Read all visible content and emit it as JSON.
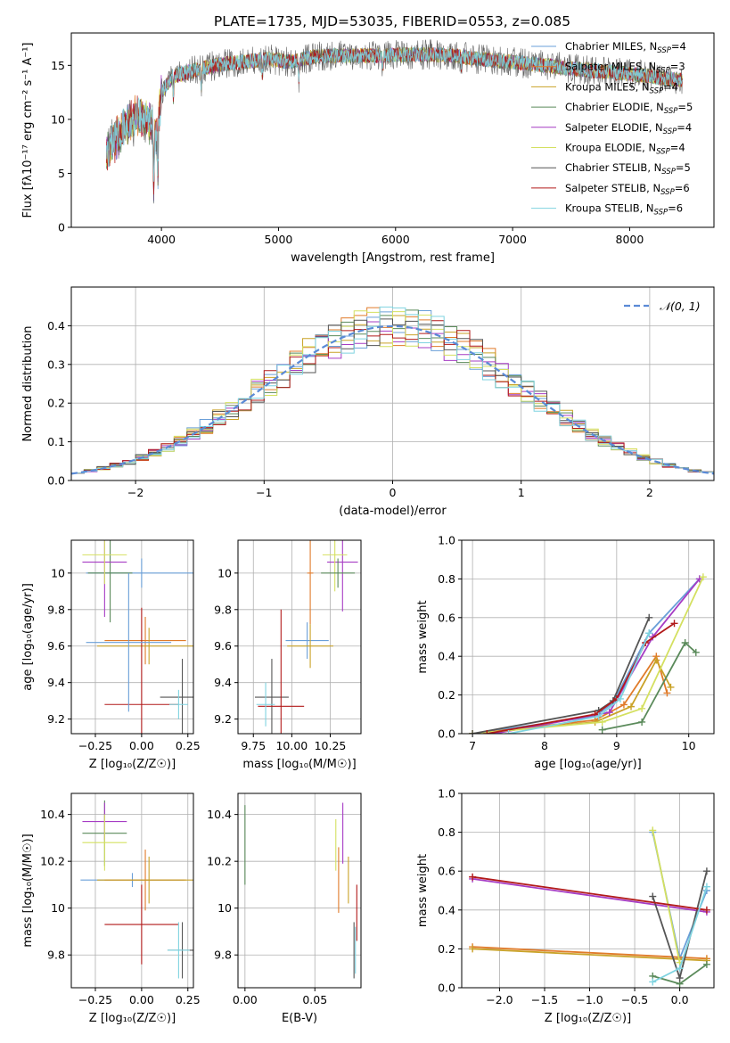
{
  "figure_title": "PLATE=1735, MJD=53035, FIBERID=0553, z=0.085",
  "colors": [
    "#6a9fd8",
    "#e07b2a",
    "#c9a227",
    "#5a8a5a",
    "#a63cc4",
    "#d4e060",
    "#555555",
    "#b21a1a",
    "#7fd3e0"
  ],
  "chart_data": [
    {
      "id": "spectrum",
      "type": "line",
      "title": "PLATE=1735, MJD=53035, FIBERID=0553, z=0.085",
      "xlabel": "wavelength [Angstrom, rest frame]",
      "ylabel": "Flux [fλ10⁻¹⁷ erg cm⁻² s⁻¹ A⁻¹]",
      "xlim": [
        3230,
        8720
      ],
      "ylim": [
        0,
        18
      ],
      "xticks": [
        4000,
        5000,
        6000,
        7000,
        8000
      ],
      "yticks": [
        0,
        5,
        10,
        15
      ],
      "grid": false,
      "legend_position": "upper right",
      "x_knots": [
        3530,
        3600,
        3700,
        3800,
        3900,
        3960,
        4000,
        4100,
        4300,
        4500,
        4700,
        4900,
        5100,
        5300,
        5500,
        5700,
        5900,
        6100,
        6300,
        6500,
        6700,
        6900,
        7100,
        7300,
        7500,
        7700,
        7900,
        8100,
        8300,
        8450
      ],
      "y_knots": [
        7.0,
        8.0,
        9.5,
        10.5,
        9.5,
        8.5,
        12.5,
        14.0,
        14.6,
        15.1,
        15.3,
        15.6,
        15.3,
        15.8,
        15.9,
        15.9,
        15.9,
        16.0,
        16.0,
        15.9,
        15.6,
        15.4,
        15.2,
        15.0,
        14.7,
        14.5,
        14.3,
        14.1,
        13.8,
        13.6
      ],
      "series": [
        {
          "name": "Chabrier MILES, N_SSP=4"
        },
        {
          "name": "Salpeter MILES, N_SSP=3"
        },
        {
          "name": "Kroupa MILES, N_SSP=4"
        },
        {
          "name": "Chabrier ELODIE, N_SSP=5"
        },
        {
          "name": "Salpeter ELODIE, N_SSP=4"
        },
        {
          "name": "Kroupa ELODIE, N_SSP=4"
        },
        {
          "name": "Chabrier STELIB, N_SSP=5"
        },
        {
          "name": "Salpeter STELIB, N_SSP=6"
        },
        {
          "name": "Kroupa STELIB, N_SSP=6"
        }
      ],
      "legend_labels": [
        [
          "Chabrier MILES, N",
          "SSP",
          "=4"
        ],
        [
          "Salpeter MILES, N",
          "SSP",
          "=3"
        ],
        [
          "Kroupa MILES, N",
          "SSP",
          "=4"
        ],
        [
          "Chabrier ELODIE, N",
          "SSP",
          "=5"
        ],
        [
          "Salpeter ELODIE, N",
          "SSP",
          "=4"
        ],
        [
          "Kroupa ELODIE, N",
          "SSP",
          "=4"
        ],
        [
          "Chabrier STELIB, N",
          "SSP",
          "=5"
        ],
        [
          "Salpeter STELIB, N",
          "SSP",
          "=6"
        ],
        [
          "Kroupa STELIB, N",
          "SSP",
          "=6"
        ]
      ]
    },
    {
      "id": "residuals",
      "type": "line",
      "xlabel": "(data-model)/error",
      "ylabel": "Normed distribution",
      "xlim": [
        -2.5,
        2.5
      ],
      "ylim": [
        0,
        0.5
      ],
      "xticks": [
        -2,
        -1,
        0,
        1,
        2
      ],
      "xtick_labels": [
        "−2",
        "−1",
        "0",
        "1",
        "2"
      ],
      "yticks": [
        0.0,
        0.1,
        0.2,
        0.3,
        0.4
      ],
      "grid": true,
      "bin_width": 0.1,
      "bin_start": -2.5,
      "reference_curve": {
        "name": "𝒩(0, 1)",
        "mean": 0,
        "sigma": 1,
        "style": "dashed"
      },
      "legend_position": "upper right"
    },
    {
      "id": "age_vs_Z",
      "type": "scatter",
      "xlabel": "Z [log₁₀(Z/Z☉)]",
      "ylabel": "age  [log₁₀(age/yr)]",
      "xlim": [
        -0.38,
        0.28
      ],
      "ylim": [
        9.12,
        10.18
      ],
      "xticks": [
        -0.25,
        0.0,
        0.25
      ],
      "xtick_labels": [
        "−0.25",
        "0.00",
        "0.25"
      ],
      "yticks": [
        9.2,
        9.4,
        9.6,
        9.8,
        10.0
      ],
      "grid": true,
      "points": [
        {
          "x": 0.0,
          "y": 10.0,
          "xerr": 0.3,
          "yerr": 0.08,
          "c": 0
        },
        {
          "x": 0.02,
          "y": 9.63,
          "xerr": 0.22,
          "yerr": 0.13,
          "c": 1
        },
        {
          "x": 0.04,
          "y": 9.6,
          "xerr": 0.28,
          "yerr": 0.1,
          "c": 2
        },
        {
          "x": -0.17,
          "y": 10.0,
          "xerr": 0.12,
          "yerr": 0.27,
          "c": 3
        },
        {
          "x": -0.2,
          "y": 10.06,
          "xerr": 0.12,
          "yerr": 0.3,
          "c": 4
        },
        {
          "x": -0.2,
          "y": 10.1,
          "xerr": 0.12,
          "yerr": 0.16,
          "c": 5
        },
        {
          "x": 0.22,
          "y": 9.32,
          "xerr": 0.12,
          "yerr": 0.21,
          "c": 6
        },
        {
          "x": 0.0,
          "y": 9.28,
          "xerr": 0.2,
          "yerr": 0.53,
          "c": 7
        },
        {
          "x": 0.2,
          "y": 9.28,
          "xerr": 0.05,
          "yerr": 0.08,
          "c": 8
        },
        {
          "x": -0.07,
          "y": 9.62,
          "xerr": 0.23,
          "yerr": 0.38,
          "c": 0
        }
      ]
    },
    {
      "id": "age_vs_mass",
      "type": "scatter",
      "xlabel": "mass [log₁₀(M/M☉)]",
      "xlim": [
        9.65,
        10.45
      ],
      "ylim": [
        9.12,
        10.18
      ],
      "xticks": [
        9.75,
        10.0,
        10.25
      ],
      "xtick_labels": [
        "9.75",
        "10.00",
        "10.25"
      ],
      "yticks": [
        9.2,
        9.4,
        9.6,
        9.8,
        10.0
      ],
      "grid": true,
      "points": [
        {
          "x": 10.12,
          "y": 10.0,
          "xerr": 0.02,
          "yerr": 0.28,
          "c": 1
        },
        {
          "x": 10.33,
          "y": 10.06,
          "xerr": 0.1,
          "yerr": 0.27,
          "c": 4
        },
        {
          "x": 10.28,
          "y": 10.1,
          "xerr": 0.08,
          "yerr": 0.2,
          "c": 5
        },
        {
          "x": 10.3,
          "y": 10.0,
          "xerr": 0.11,
          "yerr": 0.08,
          "c": 3
        },
        {
          "x": 10.1,
          "y": 9.63,
          "xerr": 0.14,
          "yerr": 0.1,
          "c": 0
        },
        {
          "x": 10.12,
          "y": 9.6,
          "xerr": 0.15,
          "yerr": 0.12,
          "c": 2
        },
        {
          "x": 9.87,
          "y": 9.32,
          "xerr": 0.11,
          "yerr": 0.21,
          "c": 6
        },
        {
          "x": 9.93,
          "y": 9.27,
          "xerr": 0.15,
          "yerr": 0.53,
          "c": 7
        },
        {
          "x": 9.83,
          "y": 9.28,
          "xerr": 0.06,
          "yerr": 0.12,
          "c": 8
        }
      ]
    },
    {
      "id": "massweight_vs_age",
      "type": "line",
      "xlabel": "age  [log₁₀(age/yr)]",
      "ylabel": "mass weight",
      "xlim": [
        6.85,
        10.35
      ],
      "ylim": [
        0,
        1.0
      ],
      "xticks": [
        7,
        8,
        9,
        10
      ],
      "yticks": [
        0.0,
        0.2,
        0.4,
        0.6,
        0.8,
        1.0
      ],
      "grid": true,
      "series": [
        {
          "c": 0,
          "x": [
            7.0,
            8.7,
            8.95,
            9.45,
            10.15
          ],
          "y": [
            0.0,
            0.09,
            0.16,
            0.52,
            0.8
          ]
        },
        {
          "c": 1,
          "x": [
            7.0,
            8.7,
            9.1,
            9.55,
            9.7
          ],
          "y": [
            0.0,
            0.07,
            0.15,
            0.4,
            0.21
          ]
        },
        {
          "c": 2,
          "x": [
            7.0,
            8.7,
            9.2,
            9.55,
            9.75
          ],
          "y": [
            0.0,
            0.06,
            0.14,
            0.38,
            0.24
          ]
        },
        {
          "c": 3,
          "x": [
            8.8,
            9.35,
            9.95,
            10.1
          ],
          "y": [
            0.02,
            0.06,
            0.47,
            0.42
          ]
        },
        {
          "c": 4,
          "x": [
            7.3,
            8.9,
            9.5,
            10.15
          ],
          "y": [
            0.0,
            0.11,
            0.5,
            0.8
          ]
        },
        {
          "c": 5,
          "x": [
            7.0,
            8.8,
            9.35,
            10.2
          ],
          "y": [
            0.0,
            0.06,
            0.13,
            0.81
          ]
        },
        {
          "c": 6,
          "x": [
            7.0,
            8.75,
            8.95,
            9.45
          ],
          "y": [
            0.0,
            0.12,
            0.17,
            0.6
          ]
        },
        {
          "c": 7,
          "x": [
            7.2,
            8.7,
            9.0,
            9.4,
            9.8
          ],
          "y": [
            0.0,
            0.1,
            0.18,
            0.47,
            0.57
          ]
        },
        {
          "c": 8,
          "x": [
            7.5,
            8.75,
            9.05,
            9.45
          ],
          "y": [
            0.0,
            0.09,
            0.18,
            0.52
          ]
        }
      ]
    },
    {
      "id": "mass_vs_Z",
      "type": "scatter",
      "xlabel": "Z [log₁₀(Z/Z☉)]",
      "ylabel": "mass [log₁₀(M/M☉)]",
      "xlim": [
        -0.38,
        0.28
      ],
      "ylim": [
        9.66,
        10.49
      ],
      "xticks": [
        -0.25,
        0.0,
        0.25
      ],
      "xtick_labels": [
        "−0.25",
        "0.00",
        "0.25"
      ],
      "yticks": [
        9.8,
        10.0,
        10.2,
        10.4
      ],
      "grid": true,
      "points": [
        {
          "x": -0.05,
          "y": 10.12,
          "xerr": 0.28,
          "yerr": 0.03,
          "c": 0
        },
        {
          "x": 0.02,
          "y": 10.12,
          "xerr": 0.22,
          "yerr": 0.13,
          "c": 1
        },
        {
          "x": 0.04,
          "y": 10.12,
          "xerr": 0.28,
          "yerr": 0.1,
          "c": 2
        },
        {
          "x": -0.2,
          "y": 10.32,
          "xerr": 0.12,
          "yerr": 0.14,
          "c": 3
        },
        {
          "x": -0.2,
          "y": 10.37,
          "xerr": 0.12,
          "yerr": 0.08,
          "c": 4
        },
        {
          "x": -0.2,
          "y": 10.28,
          "xerr": 0.12,
          "yerr": 0.12,
          "c": 5
        },
        {
          "x": 0.22,
          "y": 9.82,
          "xerr": 0.08,
          "yerr": 0.12,
          "c": 6
        },
        {
          "x": 0.0,
          "y": 9.93,
          "xerr": 0.2,
          "yerr": 0.17,
          "c": 7
        },
        {
          "x": 0.2,
          "y": 9.82,
          "xerr": 0.06,
          "yerr": 0.12,
          "c": 8
        }
      ]
    },
    {
      "id": "mass_vs_EBV",
      "type": "scatter",
      "xlabel": "E(B-V)",
      "xlim": [
        -0.005,
        0.083
      ],
      "ylim": [
        9.66,
        10.49
      ],
      "xticks": [
        0.0,
        0.05
      ],
      "xtick_labels": [
        "0.00",
        "0.05"
      ],
      "yticks": [
        9.8,
        10.0,
        10.2,
        10.4
      ],
      "grid": true,
      "points": [
        {
          "x": 0.0,
          "y": 10.27,
          "xerr": 0,
          "yerr": 0.17,
          "c": 3
        },
        {
          "x": 0.065,
          "y": 10.27,
          "xerr": 0,
          "yerr": 0.11,
          "c": 5
        },
        {
          "x": 0.067,
          "y": 10.12,
          "xerr": 0,
          "yerr": 0.14,
          "c": 1
        },
        {
          "x": 0.07,
          "y": 10.32,
          "xerr": 0,
          "yerr": 0.13,
          "c": 4
        },
        {
          "x": 0.074,
          "y": 10.12,
          "xerr": 0,
          "yerr": 0.1,
          "c": 2
        },
        {
          "x": 0.078,
          "y": 9.82,
          "xerr": 0,
          "yerr": 0.12,
          "c": 6
        },
        {
          "x": 0.08,
          "y": 9.98,
          "xerr": 0,
          "yerr": 0.12,
          "c": 7
        },
        {
          "x": 0.079,
          "y": 9.82,
          "xerr": 0,
          "yerr": 0.1,
          "c": 8
        }
      ]
    },
    {
      "id": "massweight_vs_Z",
      "type": "line",
      "xlabel": "Z [log₁₀(Z/Z☉)]",
      "ylabel": "mass weight",
      "xlim": [
        -2.42,
        0.38
      ],
      "ylim": [
        0,
        1.0
      ],
      "xticks": [
        -2.0,
        -1.5,
        -1.0,
        -0.5,
        0.0
      ],
      "xtick_labels": [
        "−2.0",
        "−1.5",
        "−1.0",
        "−0.5",
        "0.0"
      ],
      "yticks": [
        0.0,
        0.2,
        0.4,
        0.6,
        0.8,
        1.0
      ],
      "grid": true,
      "series": [
        {
          "c": 0,
          "x": [
            -0.3,
            0.0,
            0.3
          ],
          "y": [
            0.8,
            0.15,
            0.5
          ]
        },
        {
          "c": 1,
          "x": [
            -2.3,
            0.3
          ],
          "y": [
            0.21,
            0.15
          ]
        },
        {
          "c": 2,
          "x": [
            -2.3,
            0.3
          ],
          "y": [
            0.2,
            0.14
          ]
        },
        {
          "c": 3,
          "x": [
            -0.3,
            0.0,
            0.3
          ],
          "y": [
            0.06,
            0.02,
            0.12
          ]
        },
        {
          "c": 4,
          "x": [
            -2.3,
            0.3
          ],
          "y": [
            0.56,
            0.39
          ]
        },
        {
          "c": 5,
          "x": [
            -0.3,
            0.0
          ],
          "y": [
            0.81,
            0.13
          ]
        },
        {
          "c": 6,
          "x": [
            -0.3,
            0.0,
            0.3
          ],
          "y": [
            0.47,
            0.05,
            0.6
          ]
        },
        {
          "c": 7,
          "x": [
            -2.3,
            0.3
          ],
          "y": [
            0.57,
            0.4
          ]
        },
        {
          "c": 8,
          "x": [
            -0.3,
            0.0,
            0.3
          ],
          "y": [
            0.03,
            0.1,
            0.52
          ]
        }
      ]
    }
  ]
}
